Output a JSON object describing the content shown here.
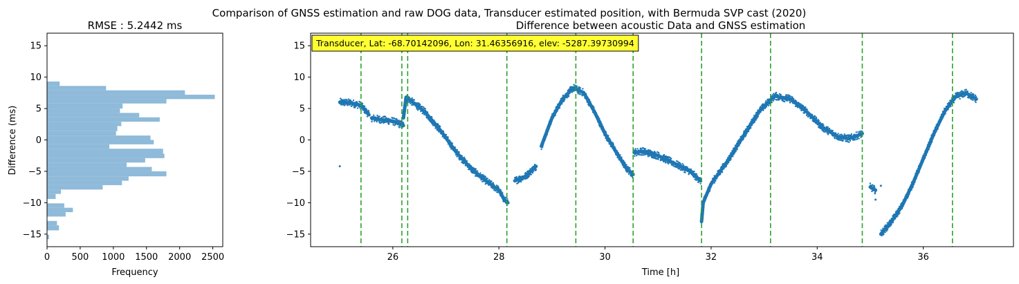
{
  "suptitle": "Comparison of GNSS estimation and raw DOG data, Transducer estimated position, with Bermuda SVP cast (2020)",
  "chart_data": [
    {
      "type": "bar",
      "orientation": "horizontal",
      "title": "RMSE : 5.2442 ms",
      "xlabel": "Frequency",
      "ylabel": "Difference (ms)",
      "xlim": [
        0,
        2650
      ],
      "ylim": [
        -17,
        17
      ],
      "xticks": [
        0,
        500,
        1000,
        1500,
        2000,
        2500
      ],
      "yticks": [
        -15,
        -10,
        -5,
        0,
        5,
        10,
        15
      ],
      "bar_color": "#8fbad9",
      "bins": [
        {
          "y0": -15.8,
          "y1": -15.1,
          "count": 30
        },
        {
          "y0": -14.4,
          "y1": -13.6,
          "count": 180
        },
        {
          "y0": -13.6,
          "y1": -12.9,
          "count": 150
        },
        {
          "y0": -12.2,
          "y1": -11.5,
          "count": 280
        },
        {
          "y0": -11.5,
          "y1": -10.8,
          "count": 390
        },
        {
          "y0": -10.8,
          "y1": -10.1,
          "count": 260
        },
        {
          "y0": -9.4,
          "y1": -8.6,
          "count": 130
        },
        {
          "y0": -8.6,
          "y1": -7.9,
          "count": 210
        },
        {
          "y0": -7.9,
          "y1": -7.2,
          "count": 840
        },
        {
          "y0": -7.2,
          "y1": -6.5,
          "count": 1130
        },
        {
          "y0": -6.5,
          "y1": -5.8,
          "count": 1230
        },
        {
          "y0": -5.8,
          "y1": -5.0,
          "count": 1800
        },
        {
          "y0": -5.0,
          "y1": -4.3,
          "count": 1580
        },
        {
          "y0": -4.3,
          "y1": -3.6,
          "count": 1200
        },
        {
          "y0": -3.6,
          "y1": -2.9,
          "count": 1480
        },
        {
          "y0": -2.9,
          "y1": -2.2,
          "count": 1770
        },
        {
          "y0": -2.2,
          "y1": -1.4,
          "count": 1750
        },
        {
          "y0": -1.4,
          "y1": -0.7,
          "count": 940
        },
        {
          "y0": -0.7,
          "y1": 0.0,
          "count": 1610
        },
        {
          "y0": 0.0,
          "y1": 0.7,
          "count": 1560
        },
        {
          "y0": 0.7,
          "y1": 1.4,
          "count": 1040
        },
        {
          "y0": 1.4,
          "y1": 2.2,
          "count": 1060
        },
        {
          "y0": 2.2,
          "y1": 2.9,
          "count": 1120
        },
        {
          "y0": 2.9,
          "y1": 3.6,
          "count": 1700
        },
        {
          "y0": 3.6,
          "y1": 4.3,
          "count": 1390
        },
        {
          "y0": 4.3,
          "y1": 5.0,
          "count": 1100
        },
        {
          "y0": 5.0,
          "y1": 5.8,
          "count": 1140
        },
        {
          "y0": 5.8,
          "y1": 6.5,
          "count": 1800
        },
        {
          "y0": 6.5,
          "y1": 7.2,
          "count": 2530
        },
        {
          "y0": 7.2,
          "y1": 7.9,
          "count": 2080
        },
        {
          "y0": 7.9,
          "y1": 8.6,
          "count": 890
        },
        {
          "y0": 8.6,
          "y1": 9.3,
          "count": 190
        }
      ]
    },
    {
      "type": "scatter",
      "title": "Difference between acoustic Data and GNSS estimation",
      "xlabel": "Time [h]",
      "ylabel": "",
      "xlim": [
        24.45,
        37.7
      ],
      "ylim": [
        -17,
        17
      ],
      "xticks": [
        26,
        28,
        30,
        32,
        34,
        36
      ],
      "yticks": [
        -15,
        -10,
        -5,
        0,
        5,
        10,
        15
      ],
      "point_color": "#1f77b4",
      "vline_color": "#2ca02c",
      "vlines": [
        25.4,
        26.17,
        26.28,
        28.15,
        29.45,
        30.53,
        31.82,
        33.12,
        34.85,
        36.55
      ],
      "annotation": "Transducer, Lat: -68.70142096, Lon: 31.46356916, elev: -5287.39730994",
      "annotation_bg": "#ffff33",
      "series": [
        {
          "segments": [
            {
              "x": [
                25.0,
                25.2,
                25.4,
                25.55
              ],
              "y": [
                6.0,
                5.9,
                5.5,
                4.0
              ]
            },
            {
              "x": [
                25.6,
                25.8,
                26.0,
                26.2
              ],
              "y": [
                3.5,
                3.2,
                3.0,
                2.3
              ]
            },
            {
              "x": [
                26.2,
                26.25,
                26.3,
                26.6,
                26.9,
                27.2,
                27.5,
                27.8,
                28.0,
                28.1
              ],
              "y": [
                3.5,
                6.8,
                6.5,
                4.5,
                1.5,
                -2.0,
                -4.8,
                -6.8,
                -8.0,
                -9.5
              ]
            },
            {
              "x": [
                28.1,
                28.17
              ],
              "y": [
                -9.5,
                -10.0
              ]
            },
            {
              "x": [
                28.3,
                28.5,
                28.7
              ],
              "y": [
                -6.5,
                -5.8,
                -4.2
              ]
            },
            {
              "x": [
                28.8,
                29.0,
                29.2,
                29.4,
                29.6,
                29.8,
                30.0,
                30.2,
                30.4,
                30.53
              ],
              "y": [
                -1.0,
                3.5,
                6.5,
                8.3,
                7.5,
                4.5,
                1.0,
                -1.8,
                -4.5,
                -5.5
              ]
            },
            {
              "x": [
                30.55,
                30.7,
                31.0,
                31.3,
                31.6,
                31.8
              ],
              "y": [
                -2.0,
                -1.8,
                -2.5,
                -3.7,
                -5.0,
                -6.5
              ]
            },
            {
              "x": [
                31.82,
                31.85,
                32.0,
                32.3,
                32.6,
                32.9,
                33.2,
                33.5,
                33.8,
                34.1,
                34.4,
                34.6,
                34.85
              ],
              "y": [
                -13.0,
                -10.0,
                -7.0,
                -3.5,
                0.5,
                4.5,
                7.0,
                6.5,
                4.5,
                2.0,
                0.5,
                0.2,
                1.0
              ]
            },
            {
              "x": [
                35.0,
                35.1
              ],
              "y": [
                -7.5,
                -8.0
              ]
            },
            {
              "x": [
                35.2,
                35.4,
                35.6,
                35.8,
                36.0,
                36.2,
                36.4,
                36.6,
                36.8,
                37.0
              ],
              "y": [
                -15.0,
                -13.0,
                -10.5,
                -7.0,
                -3.0,
                1.0,
                4.5,
                6.8,
                7.5,
                6.5
              ]
            }
          ]
        }
      ],
      "isolated_points": [
        {
          "x": 25.0,
          "y": -4.2
        },
        {
          "x": 35.1,
          "y": -9.5
        },
        {
          "x": 35.2,
          "y": -7.3
        }
      ]
    }
  ]
}
